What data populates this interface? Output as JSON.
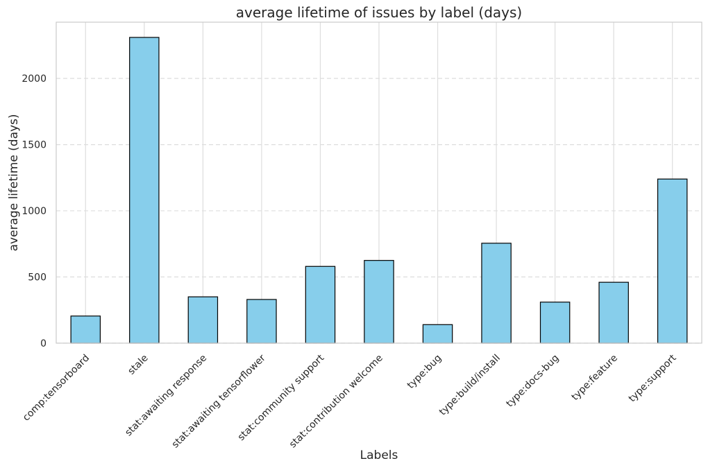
{
  "chart_data": {
    "type": "bar",
    "title": "average lifetime of issues by label (days)",
    "xlabel": "Labels",
    "ylabel": "average lifetime (days)",
    "categories": [
      "comp:tensorboard",
      "stale",
      "stat:awaiting response",
      "stat:awaiting tensorflower",
      "stat:community support",
      "stat:contribution welcome",
      "type:bug",
      "type:build/install",
      "type:docs-bug",
      "type:feature",
      "type:support"
    ],
    "values": [
      205,
      2310,
      350,
      330,
      580,
      625,
      140,
      755,
      310,
      460,
      1240
    ],
    "yticks": [
      0,
      500,
      1000,
      1500,
      2000
    ],
    "ylim": [
      0,
      2425
    ],
    "grid": true,
    "bar_color": "#87CEEB",
    "bar_edge_color": "#000000",
    "grid_color": "#DDDDDD",
    "spine_color": "#CCCCCC"
  }
}
